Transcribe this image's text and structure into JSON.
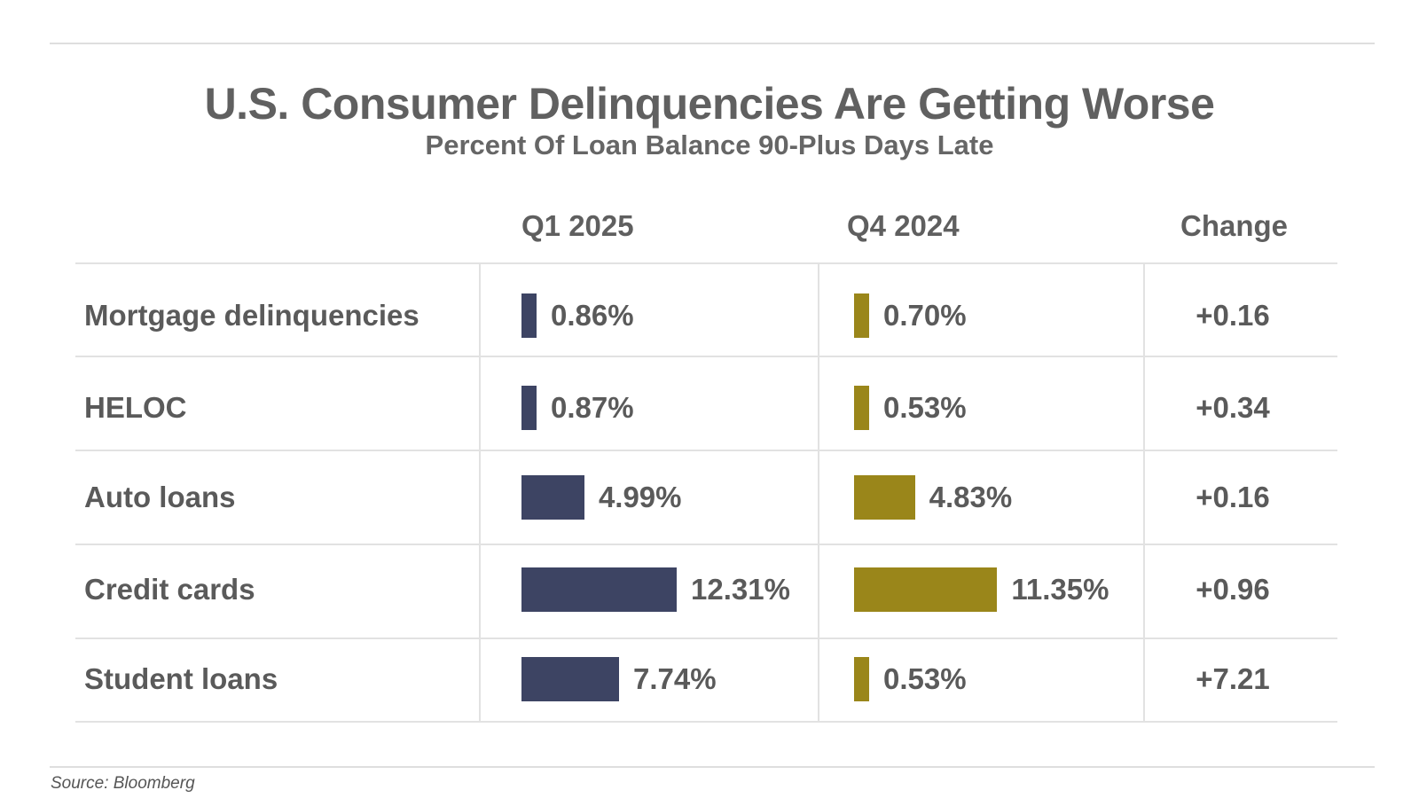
{
  "title": "U.S. Consumer Delinquencies Are Getting Worse",
  "subtitle": "Percent Of Loan Balance 90-Plus Days Late",
  "source": "Source: Bloomberg",
  "colors": {
    "q1_2025": "#3d4463",
    "q4_2024": "#9a861a",
    "text": "#5a5a5a",
    "grid": "#e2e2e2"
  },
  "chart_data": {
    "type": "table",
    "title": "U.S. Consumer Delinquencies Are Getting Worse",
    "subtitle": "Percent Of Loan Balance 90-Plus Days Late",
    "columns": [
      "Q1 2025",
      "Q4 2024",
      "Change"
    ],
    "categories": [
      "Mortgage delinquencies",
      "HELOC",
      "Auto loans",
      "Credit cards",
      "Student loans"
    ],
    "series": [
      {
        "name": "Q1 2025",
        "values": [
          0.86,
          0.87,
          4.99,
          12.31,
          7.74
        ],
        "labels": [
          "0.86%",
          "0.87%",
          "4.99%",
          "12.31%",
          "7.74%"
        ]
      },
      {
        "name": "Q4 2024",
        "values": [
          0.7,
          0.53,
          4.83,
          11.35,
          0.53
        ],
        "labels": [
          "0.70%",
          "0.53%",
          "4.83%",
          "11.35%",
          "0.53%"
        ]
      }
    ],
    "change": [
      "+0.16",
      "+0.34",
      "+0.16",
      "+0.96",
      "+7.21"
    ],
    "bar_max": 12.31
  }
}
